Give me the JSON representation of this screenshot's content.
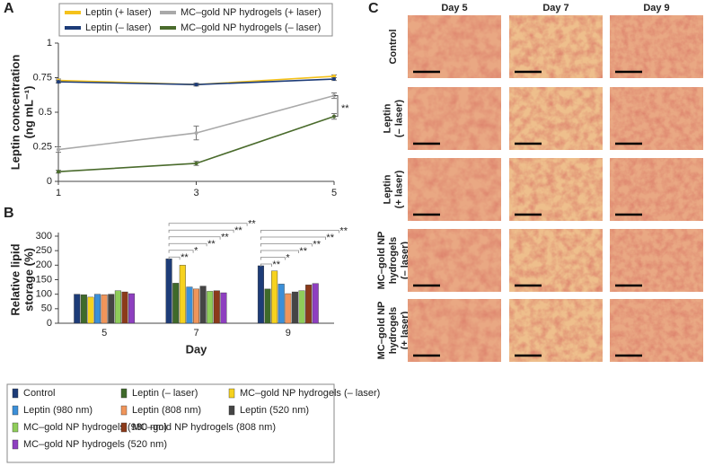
{
  "chart_data": [
    {
      "type": "line",
      "panel": "A",
      "y_label": [
        "Leptin concentration",
        "(ng mL⁻¹)"
      ],
      "x": [
        1,
        3,
        5
      ],
      "xlim": [
        1,
        5
      ],
      "xticks": [
        1,
        3,
        5
      ],
      "ylim": [
        0,
        1
      ],
      "yticks": [
        0,
        0.25,
        0.5,
        0.75,
        1
      ],
      "series": [
        {
          "name": "Leptin (+ laser)",
          "color": "#f5c21b",
          "values": [
            0.73,
            0.7,
            0.76
          ],
          "errors": [
            0.01,
            0.01,
            0.01
          ]
        },
        {
          "name": "MC–gold NP hydrogels (+ laser)",
          "color": "#a9a9a9",
          "values": [
            0.23,
            0.35,
            0.62
          ],
          "errors": [
            0.02,
            0.05,
            0.02
          ]
        },
        {
          "name": "Leptin (– laser)",
          "color": "#1d3c78",
          "values": [
            0.72,
            0.7,
            0.74
          ],
          "errors": [
            0.01,
            0.01,
            0.01
          ]
        },
        {
          "name": "MC–gold NP hydrogels (– laser)",
          "color": "#4a6b2c",
          "values": [
            0.07,
            0.13,
            0.47
          ],
          "errors": [
            0.01,
            0.015,
            0.02
          ]
        }
      ],
      "annotation": "**"
    },
    {
      "type": "bar",
      "panel": "B",
      "y_label": [
        "Relative lipid",
        "storage (%)"
      ],
      "x_label": "Day",
      "categories": [
        "5",
        "7",
        "9"
      ],
      "ylim": [
        0,
        300
      ],
      "yticks": [
        0,
        50,
        100,
        150,
        200,
        250,
        300
      ],
      "series": [
        {
          "name": "Control",
          "color": "#1d3c78",
          "values": [
            100,
            222,
            198
          ]
        },
        {
          "name": "Leptin (– laser)",
          "color": "#3f6a2a",
          "values": [
            98,
            138,
            118
          ]
        },
        {
          "name": "MC–gold NP hydrogels (– laser)",
          "color": "#f6d21e",
          "values": [
            90,
            200,
            180
          ]
        },
        {
          "name": "Leptin (980 nm)",
          "color": "#3b8fd8",
          "values": [
            100,
            125,
            135
          ]
        },
        {
          "name": "Leptin (808 nm)",
          "color": "#f0955a",
          "values": [
            98,
            118,
            102
          ]
        },
        {
          "name": "Leptin (520 nm)",
          "color": "#454545",
          "values": [
            100,
            128,
            108
          ]
        },
        {
          "name": "MC–gold NP hydrogels (980 nm)",
          "color": "#8fcd5a",
          "values": [
            112,
            110,
            112
          ]
        },
        {
          "name": "MC–gold NP hydrogels (808 nm)",
          "color": "#8b3a1a",
          "values": [
            108,
            112,
            132
          ]
        },
        {
          "name": "MC–gold NP hydrogels (520 nm)",
          "color": "#8e3fc0",
          "values": [
            102,
            105,
            137
          ]
        }
      ],
      "significance": [
        [],
        [
          "**",
          "*",
          "**",
          "**",
          "**",
          "**"
        ],
        [
          "**",
          "*",
          "**",
          "**",
          "**",
          "**"
        ]
      ]
    }
  ],
  "panel_c": {
    "panel": "C",
    "columns": [
      "Day 5",
      "Day 7",
      "Day 9"
    ],
    "rows": [
      [
        "Control"
      ],
      [
        "Leptin",
        "(– laser)"
      ],
      [
        "Leptin",
        "(+ laser)"
      ],
      [
        "MC–gold NP",
        "hydrogels",
        "(– laser)"
      ],
      [
        "MC–gold NP",
        "hydrogels",
        "(+ laser)"
      ]
    ]
  }
}
